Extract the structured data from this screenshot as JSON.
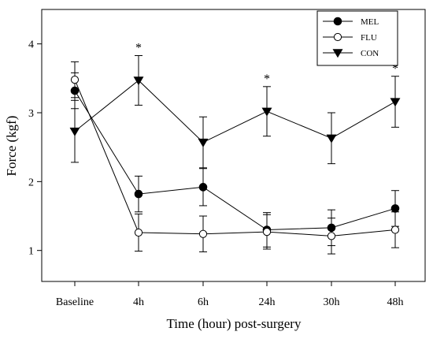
{
  "chart_data": {
    "type": "line",
    "xlabel": "Time (hour) post-surgery",
    "ylabel": "Force (kgf)",
    "categories": [
      "Baseline",
      "4h",
      "6h",
      "24h",
      "30h",
      "48h"
    ],
    "ylim": [
      0.55,
      4.5
    ],
    "yticks": [
      1,
      2,
      3,
      4
    ],
    "grid": false,
    "legend_position": "top-right",
    "series": [
      {
        "name": "MEL",
        "marker": "filled-circle",
        "values": [
          3.32,
          1.82,
          1.92,
          1.3,
          1.33,
          1.61
        ],
        "errors": [
          0.26,
          0.26,
          0.27,
          0.25,
          0.26,
          0.26
        ]
      },
      {
        "name": "FLU",
        "marker": "open-circle",
        "values": [
          3.48,
          1.26,
          1.24,
          1.27,
          1.21,
          1.3
        ],
        "errors": [
          0.26,
          0.27,
          0.26,
          0.25,
          0.26,
          0.26
        ]
      },
      {
        "name": "CON",
        "marker": "filled-triangle-down",
        "values": [
          2.73,
          3.47,
          2.57,
          3.02,
          2.63,
          3.16
        ],
        "errors": [
          0.45,
          0.36,
          0.37,
          0.36,
          0.37,
          0.37
        ]
      }
    ],
    "annotations": [
      {
        "text": "*",
        "category": "4h",
        "y": 4.0
      },
      {
        "text": "*",
        "category": "24h",
        "y": 3.55
      },
      {
        "text": "*",
        "category": "48h",
        "y": 3.7
      }
    ]
  }
}
